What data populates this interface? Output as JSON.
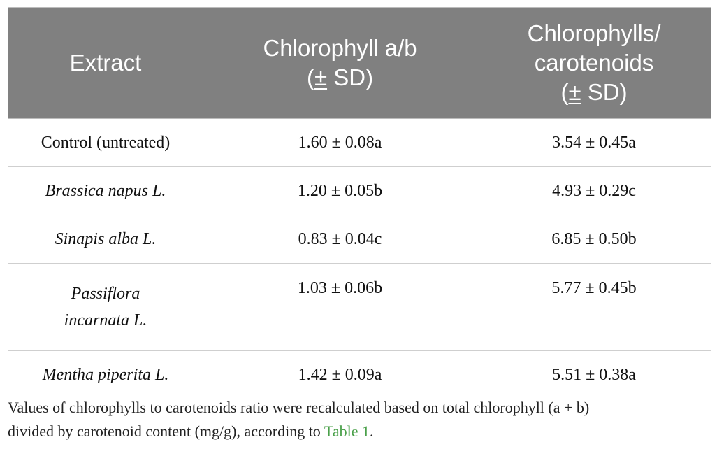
{
  "table": {
    "headers": [
      {
        "line1": "Extract",
        "line2": "",
        "pm": "",
        "sd": ""
      },
      {
        "line1": "Chlorophyll a/b",
        "open": "(",
        "pm": "±",
        "sd": " SD)"
      },
      {
        "line1": "Chlorophylls/",
        "line2": "carotenoids",
        "open": "(",
        "pm": "±",
        "sd": " SD)"
      }
    ],
    "rows": [
      {
        "extract": "Control (untreated)",
        "chl_ab": "1.60 ± 0.08a",
        "chl_car": "3.54 ± 0.45a"
      },
      {
        "extract": "Brassica napus L.",
        "chl_ab": "1.20 ± 0.05b",
        "chl_car": "4.93 ± 0.29c"
      },
      {
        "extract": "Sinapis alba L.",
        "chl_ab": "0.83 ± 0.04c",
        "chl_car": "6.85 ± 0.50b"
      },
      {
        "extract_line1": "Passiflora",
        "extract_line2": "incarnata L.",
        "chl_ab": "1.03 ± 0.06b",
        "chl_car": "5.77 ± 0.45b"
      },
      {
        "extract": "Mentha piperita L.",
        "chl_ab": "1.42 ± 0.09a",
        "chl_car": "5.51 ± 0.38a"
      }
    ]
  },
  "footnote": {
    "text_line1": "Values of chlorophylls to carotenoids ratio were recalculated based on total chlorophyll (a + b)",
    "text_line2": "divided by carotenoid content (mg/g), according to ",
    "link": "Table 1",
    "end": "."
  }
}
